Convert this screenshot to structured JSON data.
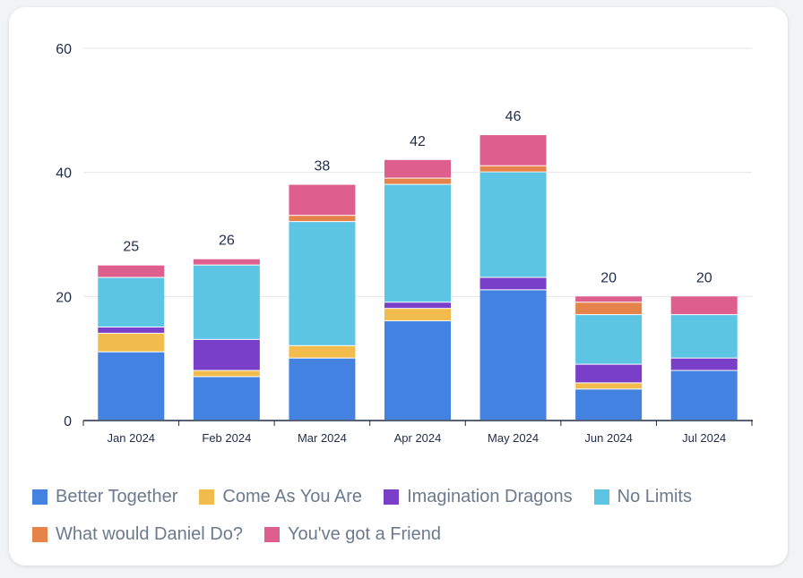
{
  "chart_data": {
    "type": "bar",
    "stacked": true,
    "categories": [
      "Jan 2024",
      "Feb 2024",
      "Mar 2024",
      "Apr 2024",
      "May 2024",
      "Jun 2024",
      "Jul 2024"
    ],
    "series": [
      {
        "name": "Better Together",
        "color": "#4382e0",
        "values": [
          11,
          7,
          10,
          16,
          21,
          5,
          8
        ]
      },
      {
        "name": "Come As You Are",
        "color": "#f2bc4d",
        "values": [
          3,
          1,
          2,
          2,
          0,
          1,
          0
        ]
      },
      {
        "name": "Imagination Dragons",
        "color": "#7a3fc9",
        "values": [
          1,
          5,
          0,
          1,
          2,
          3,
          2
        ]
      },
      {
        "name": "No Limits",
        "color": "#5bc5e3",
        "values": [
          8,
          12,
          20,
          19,
          17,
          8,
          7
        ]
      },
      {
        "name": "What would Daniel Do?",
        "color": "#e5834a",
        "values": [
          0,
          0,
          1,
          1,
          1,
          2,
          0
        ]
      },
      {
        "name": "You've got a Friend",
        "color": "#de5e8c",
        "values": [
          2,
          1,
          5,
          3,
          5,
          1,
          3
        ]
      }
    ],
    "totals": [
      25,
      26,
      38,
      42,
      46,
      20,
      20
    ],
    "ylim": [
      0,
      60
    ],
    "yticks": [
      0,
      20,
      40,
      60
    ],
    "grid": true,
    "legend": "bottom"
  }
}
